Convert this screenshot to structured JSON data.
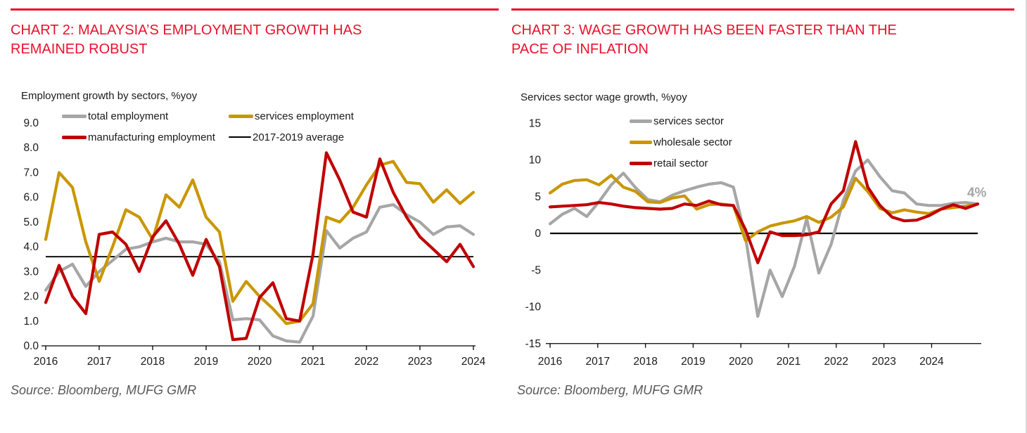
{
  "page": {
    "background": "#ffffff",
    "accent_red": "#e8112d"
  },
  "charts": [
    {
      "title_line1": "CHART 2: MALAYSIA’S EMPLOYMENT GROWTH HAS",
      "title_line2": "REMAINED ROBUST",
      "subtitle": "Employment growth by sectors, %yoy",
      "source": "Source: Bloomberg, MUFG GMR",
      "chart_data": {
        "type": "line",
        "x_frequency": "quarterly",
        "x_start": "2016Q1",
        "x_tick_labels": [
          "2016",
          "2017",
          "2018",
          "2019",
          "2020",
          "2021",
          "2022",
          "2023",
          "2024"
        ],
        "ylim": [
          0,
          9
        ],
        "y_tick_labels": [
          "9.0",
          "8.0",
          "7.0",
          "6.0",
          "5.0",
          "4.0",
          "3.0",
          "2.0",
          "1.0",
          "0.0"
        ],
        "y_tick_values": [
          9,
          8,
          7,
          6,
          5,
          4,
          3,
          2,
          1,
          0
        ],
        "grid": false,
        "legend_position": "top",
        "series": [
          {
            "name": "total employment",
            "color": "#a6a6a6",
            "values": [
              2.25,
              3.0,
              3.3,
              2.4,
              3.0,
              3.45,
              3.9,
              4.0,
              4.2,
              4.35,
              4.2,
              4.2,
              4.1,
              3.4,
              1.05,
              1.1,
              1.05,
              0.4,
              0.2,
              0.15,
              1.2,
              4.65,
              3.95,
              4.35,
              4.6,
              5.6,
              5.7,
              5.3,
              5.0,
              4.5,
              4.8,
              4.85,
              4.5
            ]
          },
          {
            "name": "services employment",
            "color": "#c99700",
            "values": [
              4.3,
              7.0,
              6.4,
              4.2,
              2.6,
              4.0,
              5.5,
              5.2,
              4.3,
              6.1,
              5.6,
              6.7,
              5.2,
              4.6,
              1.8,
              2.6,
              2.0,
              1.5,
              0.9,
              1.0,
              1.7,
              5.2,
              5.0,
              5.6,
              6.5,
              7.3,
              7.45,
              6.6,
              6.55,
              5.8,
              6.3,
              5.75,
              6.2
            ]
          },
          {
            "name": "manufacturing employment",
            "color": "#c00000",
            "values": [
              1.75,
              3.25,
              2.0,
              1.3,
              4.5,
              4.6,
              4.1,
              3.0,
              4.4,
              5.05,
              4.1,
              2.85,
              4.3,
              3.2,
              0.25,
              0.3,
              1.95,
              2.55,
              1.1,
              1.0,
              3.7,
              7.8,
              6.7,
              5.4,
              5.2,
              7.55,
              6.2,
              5.2,
              4.4,
              3.9,
              3.4,
              4.1,
              3.2
            ]
          }
        ],
        "reference_line": {
          "label": "2017-2019 average",
          "value": 3.6,
          "color": "#000000"
        }
      }
    },
    {
      "title_line1": "CHART 3: WAGE GROWTH HAS BEEN FASTER THAN THE",
      "title_line2": "PACE OF INFLATION",
      "subtitle": "Services sector wage growth, %yoy",
      "source": "Source: Bloomberg, MUFG GMR",
      "chart_data": {
        "type": "line",
        "x_frequency": "quarterly",
        "x_start": "2016Q1",
        "x_tick_labels": [
          "2016",
          "2017",
          "2018",
          "2019",
          "2020",
          "2021",
          "2022",
          "2023",
          "2024"
        ],
        "ylim": [
          -15,
          15
        ],
        "y_tick_labels": [
          "15",
          "10",
          "5",
          "0",
          "-5",
          "-10",
          "-15"
        ],
        "y_tick_values": [
          15,
          10,
          5,
          0,
          -5,
          -10,
          -15
        ],
        "grid": false,
        "legend_position": "top",
        "zero_line": {
          "value": 0,
          "color": "#000000"
        },
        "series": [
          {
            "name": "services sector",
            "color": "#a6a6a6",
            "values": [
              1.3,
              2.6,
              3.4,
              2.3,
              4.3,
              6.6,
              8.2,
              6.2,
              4.6,
              4.3,
              5.2,
              5.8,
              6.3,
              6.7,
              6.9,
              6.3,
              -0.5,
              -11.3,
              -5.0,
              -8.6,
              -4.5,
              2.0,
              -5.4,
              -1.5,
              4.5,
              8.5,
              10.0,
              7.7,
              5.8,
              5.5,
              4.0,
              3.8,
              3.8,
              4.1,
              4.2,
              4.0
            ]
          },
          {
            "name": "wholesale sector",
            "color": "#c99700",
            "values": [
              5.5,
              6.7,
              7.2,
              7.3,
              6.6,
              7.9,
              6.3,
              5.7,
              4.3,
              4.2,
              4.8,
              5.1,
              3.3,
              3.9,
              4.0,
              3.8,
              -1.0,
              0.2,
              1.0,
              1.4,
              1.7,
              2.3,
              1.5,
              2.2,
              3.6,
              7.5,
              5.7,
              3.4,
              2.8,
              3.2,
              2.9,
              2.7,
              3.3,
              3.5,
              3.7,
              4.0
            ]
          },
          {
            "name": "retail sector",
            "color": "#c00000",
            "values": [
              3.6,
              3.7,
              3.8,
              3.9,
              4.2,
              4.0,
              3.7,
              3.5,
              3.4,
              3.3,
              3.4,
              4.0,
              3.8,
              4.4,
              3.9,
              3.8,
              0.5,
              -4.0,
              0.2,
              -0.3,
              -0.3,
              -0.2,
              0.2,
              4.0,
              5.8,
              12.5,
              6.3,
              3.8,
              2.2,
              1.7,
              1.8,
              2.4,
              3.3,
              3.9,
              3.4,
              4.0
            ]
          }
        ],
        "annotation": {
          "text": "4%",
          "color": "#a6a6a6"
        }
      }
    }
  ]
}
